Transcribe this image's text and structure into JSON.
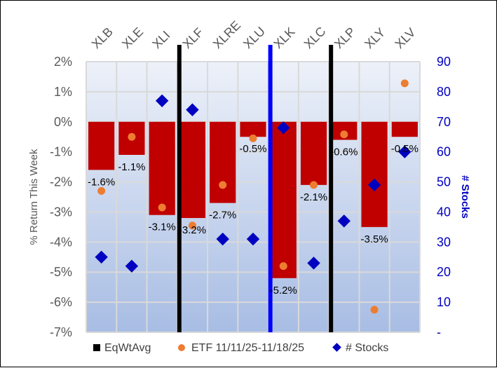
{
  "chart_data": {
    "type": "bar",
    "title": "",
    "categories": [
      "XLB",
      "XLE",
      "XLI",
      "XLF",
      "XLRE",
      "XLU",
      "XLK",
      "XLC",
      "XLP",
      "XLY",
      "XLV"
    ],
    "series": [
      {
        "name": "EqWtAvg",
        "type": "bar",
        "axis": "left",
        "values": [
          -1.6,
          -1.1,
          -3.1,
          -3.2,
          -2.7,
          -0.5,
          -5.2,
          -2.1,
          -0.6,
          -3.5,
          -0.5
        ],
        "labels": [
          "-1.6%",
          "-1.1%",
          "-3.1%",
          "-3.2%",
          "-2.7%",
          "-0.5%",
          "-5.2%",
          "-2.1%",
          "-0.6%",
          "-3.5%",
          "-0.5%"
        ],
        "color": "#c00000",
        "legend_color": "#000000"
      },
      {
        "name": "ETF 11/11/25-11/18/25",
        "type": "scatter",
        "axis": "left",
        "values": [
          -2.3,
          -0.5,
          -2.85,
          -3.45,
          -2.1,
          -0.55,
          -4.8,
          -2.1,
          -0.42,
          -6.25,
          1.28
        ],
        "color": "#ed7d31"
      },
      {
        "name": "# Stocks",
        "type": "scatter",
        "axis": "right",
        "values": [
          25,
          22,
          77,
          74,
          31,
          31,
          68,
          23,
          37,
          49,
          60
        ],
        "color": "#0000c0"
      }
    ],
    "ylabel": "% Return This Week",
    "y2label": "# Stocks",
    "ylim": [
      -7,
      2
    ],
    "y2lim": [
      0,
      90
    ],
    "yticks": [
      "2%",
      "1%",
      "0%",
      "-1%",
      "-2%",
      "-3%",
      "-4%",
      "-5%",
      "-6%",
      "-7%"
    ],
    "y2ticks": [
      "90",
      "80",
      "70",
      "60",
      "50",
      "40",
      "30",
      "20",
      "10",
      "-"
    ],
    "dividers": [
      {
        "after": "XLI",
        "color": "#000000"
      },
      {
        "after": "XLU",
        "color": "#0000ff"
      },
      {
        "after": "XLC",
        "color": "#000000"
      }
    ],
    "grid": true,
    "legend": "bottom"
  }
}
